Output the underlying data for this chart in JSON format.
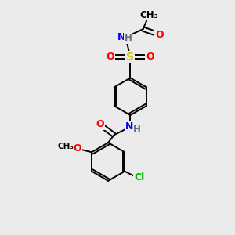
{
  "bg_color": "#ebebeb",
  "bond_color": "#000000",
  "bond_width": 1.4,
  "atom_colors": {
    "O": "#ff0000",
    "N": "#0000ff",
    "S": "#cccc00",
    "Cl": "#00bb00",
    "H": "#607080",
    "C": "#000000"
  },
  "font_size": 9,
  "fig_size": [
    3.0,
    3.0
  ],
  "dpi": 100
}
